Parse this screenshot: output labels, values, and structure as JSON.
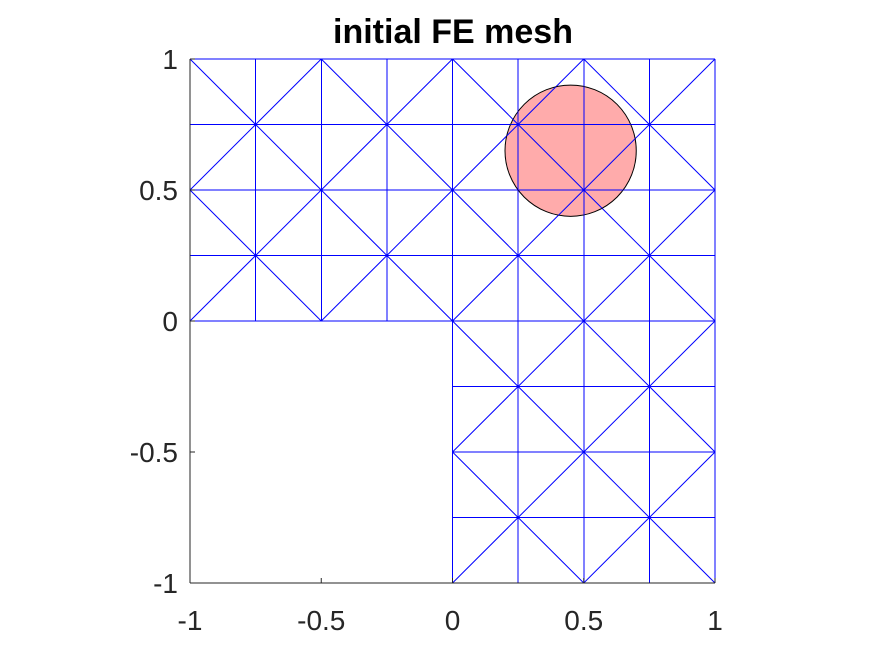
{
  "chart_data": {
    "type": "mesh",
    "title": "initial FE mesh",
    "xlabel": "",
    "ylabel": "",
    "xlim": [
      -1,
      1
    ],
    "ylim": [
      -1,
      1
    ],
    "x_ticks": [
      -1,
      -0.5,
      0,
      0.5,
      1
    ],
    "y_ticks": [
      -1,
      -0.5,
      0,
      0.5,
      1
    ],
    "x_tick_labels": [
      "-1",
      "-0.5",
      "0",
      "0.5",
      "1"
    ],
    "y_tick_labels": [
      "-1",
      "-0.5",
      "0",
      "0.5",
      "1"
    ],
    "grid": false,
    "domain": "L-shaped",
    "cell_size": 0.25,
    "cells": [
      {
        "x": -1,
        "y": 0,
        "nx": 8,
        "ny": 4
      },
      {
        "x": 0,
        "y": -1,
        "nx": 4,
        "ny": 4
      }
    ],
    "mesh_color": "#0000ff",
    "circle": {
      "center": [
        0.45,
        0.65
      ],
      "radius": 0.25,
      "fill": "#ffa6a6",
      "stroke": "#000000"
    }
  }
}
